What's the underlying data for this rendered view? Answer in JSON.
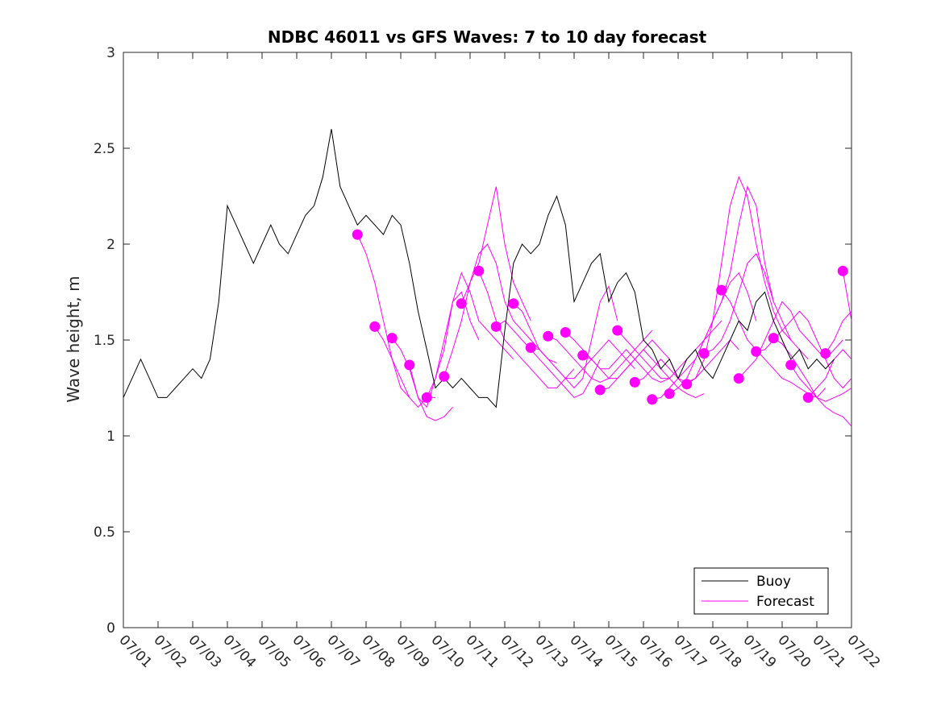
{
  "chart_data": {
    "type": "line",
    "title": "NDBC 46011 vs GFS Waves: 7 to 10 day forecast",
    "xlabel": "",
    "ylabel": "Wave height, m",
    "xlim": [
      0,
      21
    ],
    "ylim": [
      0,
      3
    ],
    "x_ticks": [
      "07/01",
      "07/02",
      "07/03",
      "07/04",
      "07/05",
      "07/06",
      "07/07",
      "07/08",
      "07/09",
      "07/10",
      "07/11",
      "07/12",
      "07/13",
      "07/14",
      "07/15",
      "07/16",
      "07/17",
      "07/18",
      "07/19",
      "07/20",
      "07/21",
      "07/22"
    ],
    "y_ticks": [
      0,
      0.5,
      1,
      1.5,
      2,
      2.5,
      3
    ],
    "y_tick_labels": [
      "0",
      "0.5",
      "1",
      "1.5",
      "2",
      "2.5",
      "3"
    ],
    "legend": {
      "placement": "bottom-right",
      "entries": [
        "Buoy",
        "Forecast"
      ]
    },
    "colors": {
      "buoy": "#000000",
      "forecast": "#ff00ff"
    },
    "series": [
      {
        "name": "Buoy",
        "x": [
          0,
          0.25,
          0.5,
          0.75,
          1,
          1.25,
          1.5,
          1.75,
          2,
          2.25,
          2.5,
          2.75,
          3,
          3.25,
          3.5,
          3.75,
          4,
          4.25,
          4.5,
          4.75,
          5,
          5.25,
          5.5,
          5.75,
          6,
          6.25,
          6.5,
          6.75,
          7,
          7.25,
          7.5,
          7.75,
          8,
          8.25,
          8.5,
          8.75,
          9,
          9.25,
          9.5,
          9.75,
          10,
          10.25,
          10.5,
          10.75,
          11,
          11.25,
          11.5,
          11.75,
          12,
          12.25,
          12.5,
          12.75,
          13,
          13.25,
          13.5,
          13.75,
          14,
          14.25,
          14.5,
          14.75,
          15,
          15.25,
          15.5,
          15.75,
          16,
          16.25,
          16.5,
          16.75,
          17,
          17.25,
          17.5,
          17.75,
          18,
          18.25,
          18.5,
          18.75,
          19,
          19.25,
          19.5,
          19.75,
          20,
          20.25,
          20.5
        ],
        "values": [
          1.2,
          1.3,
          1.4,
          1.3,
          1.2,
          1.2,
          1.25,
          1.3,
          1.35,
          1.3,
          1.4,
          1.7,
          2.2,
          2.1,
          2.0,
          1.9,
          2.0,
          2.1,
          2.0,
          1.95,
          2.05,
          2.15,
          2.2,
          2.35,
          2.6,
          2.3,
          2.2,
          2.1,
          2.15,
          2.1,
          2.05,
          2.15,
          2.1,
          1.9,
          1.65,
          1.45,
          1.25,
          1.3,
          1.25,
          1.3,
          1.25,
          1.2,
          1.2,
          1.15,
          1.55,
          1.9,
          2.0,
          1.95,
          2.0,
          2.15,
          2.25,
          2.1,
          1.7,
          1.8,
          1.9,
          1.95,
          1.7,
          1.8,
          1.85,
          1.75,
          1.5,
          1.45,
          1.35,
          1.4,
          1.3,
          1.4,
          1.45,
          1.35,
          1.3,
          1.4,
          1.5,
          1.6,
          1.55,
          1.7,
          1.75,
          1.6,
          1.5,
          1.4,
          1.45,
          1.35,
          1.4,
          1.35,
          1.4
        ]
      },
      {
        "name": "Forecast",
        "runs": [
          {
            "x": [
              6.75,
              7.0,
              7.25,
              7.5,
              7.75,
              8.0,
              8.25
            ],
            "values": [
              2.05,
              1.95,
              1.8,
              1.6,
              1.4,
              1.25,
              1.2
            ]
          },
          {
            "x": [
              7.25,
              7.5,
              7.75,
              8.0,
              8.25,
              8.5,
              8.75,
              9.0
            ],
            "values": [
              1.57,
              1.5,
              1.4,
              1.3,
              1.2,
              1.15,
              1.2,
              1.2
            ]
          },
          {
            "x": [
              7.75,
              8.0,
              8.25,
              8.5,
              8.75,
              9.0,
              9.25,
              9.5
            ],
            "values": [
              1.51,
              1.45,
              1.35,
              1.2,
              1.1,
              1.08,
              1.1,
              1.15
            ]
          },
          {
            "x": [
              8.25,
              8.5,
              8.75,
              9.0,
              9.25,
              9.5,
              9.75,
              10.0,
              10.25
            ],
            "values": [
              1.37,
              1.2,
              1.15,
              1.3,
              1.5,
              1.7,
              1.75,
              1.6,
              1.5
            ]
          },
          {
            "x": [
              8.75,
              9.0,
              9.25,
              9.5,
              9.75,
              10.0,
              10.25,
              10.5,
              10.75,
              11.0,
              11.25
            ],
            "values": [
              1.2,
              1.3,
              1.45,
              1.7,
              1.85,
              1.75,
              1.6,
              1.55,
              1.5,
              1.45,
              1.4
            ]
          },
          {
            "x": [
              9.25,
              9.5,
              9.75,
              10.0,
              10.25,
              10.5,
              10.75,
              11.0,
              11.25,
              11.5,
              11.75
            ],
            "values": [
              1.31,
              1.45,
              1.6,
              1.8,
              1.9,
              2.1,
              2.3,
              2.0,
              1.8,
              1.7,
              1.6
            ]
          },
          {
            "x": [
              9.75,
              10.0,
              10.25,
              10.5,
              10.75,
              11.0,
              11.25,
              11.5,
              11.75,
              12.0,
              12.25,
              12.5
            ],
            "values": [
              1.69,
              1.8,
              1.95,
              2.0,
              1.9,
              1.7,
              1.6,
              1.55,
              1.5,
              1.45,
              1.4,
              1.38
            ]
          },
          {
            "x": [
              10.25,
              10.5,
              10.75,
              11.0,
              11.25,
              11.5,
              11.75,
              12.0,
              12.25,
              12.5,
              12.75,
              13.0
            ],
            "values": [
              1.86,
              1.75,
              1.6,
              1.5,
              1.45,
              1.4,
              1.35,
              1.3,
              1.25,
              1.25,
              1.3,
              1.35
            ]
          },
          {
            "x": [
              10.75,
              11.0,
              11.25,
              11.5,
              11.75,
              12.0,
              12.25,
              12.5,
              12.75,
              13.0,
              13.25,
              13.5,
              13.75
            ],
            "values": [
              1.57,
              1.6,
              1.55,
              1.5,
              1.45,
              1.4,
              1.35,
              1.3,
              1.25,
              1.2,
              1.22,
              1.3,
              1.4
            ]
          },
          {
            "x": [
              11.25,
              11.5,
              11.75,
              12.0,
              12.25,
              12.5,
              12.75,
              13.0,
              13.25,
              13.5,
              13.75,
              14.0,
              14.25
            ],
            "values": [
              1.69,
              1.65,
              1.55,
              1.45,
              1.4,
              1.35,
              1.3,
              1.25,
              1.3,
              1.5,
              1.7,
              1.78,
              1.6
            ]
          },
          {
            "x": [
              11.75,
              12.0,
              12.25,
              12.5,
              12.75,
              13.0,
              13.25,
              13.5,
              13.75,
              14.0,
              14.25,
              14.5,
              14.75
            ],
            "values": [
              1.46,
              1.45,
              1.4,
              1.35,
              1.3,
              1.3,
              1.35,
              1.4,
              1.45,
              1.5,
              1.45,
              1.4,
              1.35
            ]
          },
          {
            "x": [
              12.25,
              12.5,
              12.75,
              13.0,
              13.25,
              13.5,
              13.75,
              14.0,
              14.25,
              14.5,
              14.75,
              15.0,
              15.25
            ],
            "values": [
              1.52,
              1.5,
              1.45,
              1.4,
              1.35,
              1.3,
              1.28,
              1.3,
              1.35,
              1.4,
              1.45,
              1.5,
              1.55
            ]
          },
          {
            "x": [
              12.75,
              13.0,
              13.25,
              13.5,
              13.75,
              14.0,
              14.25,
              14.5,
              14.75,
              15.0,
              15.25,
              15.5,
              15.75
            ],
            "values": [
              1.54,
              1.5,
              1.45,
              1.4,
              1.35,
              1.35,
              1.4,
              1.45,
              1.4,
              1.35,
              1.3,
              1.28,
              1.3
            ]
          },
          {
            "x": [
              13.25,
              13.5,
              13.75,
              14.0,
              14.25,
              14.5,
              14.75,
              15.0,
              15.25,
              15.5,
              15.75,
              16.0,
              16.25
            ],
            "values": [
              1.42,
              1.4,
              1.35,
              1.3,
              1.3,
              1.35,
              1.4,
              1.45,
              1.5,
              1.45,
              1.4,
              1.3,
              1.25
            ]
          },
          {
            "x": [
              13.75,
              14.0,
              14.25,
              14.5,
              14.75,
              15.0,
              15.25,
              15.5,
              15.75,
              16.0,
              16.25,
              16.5,
              16.75
            ],
            "values": [
              1.24,
              1.25,
              1.3,
              1.35,
              1.4,
              1.45,
              1.4,
              1.35,
              1.3,
              1.25,
              1.22,
              1.2,
              1.22
            ]
          },
          {
            "x": [
              14.25,
              14.5,
              14.75,
              15.0,
              15.25,
              15.5,
              15.75,
              16.0,
              16.25,
              16.5,
              16.75,
              17.0,
              17.25
            ],
            "values": [
              1.55,
              1.5,
              1.45,
              1.4,
              1.35,
              1.3,
              1.3,
              1.35,
              1.4,
              1.45,
              1.5,
              1.55,
              1.6
            ]
          },
          {
            "x": [
              14.75,
              15.0,
              15.25,
              15.5,
              15.75,
              16.0,
              16.25,
              16.5,
              16.75,
              17.0,
              17.25,
              17.5,
              17.75
            ],
            "values": [
              1.28,
              1.3,
              1.35,
              1.4,
              1.35,
              1.3,
              1.28,
              1.3,
              1.35,
              1.4,
              1.45,
              1.5,
              1.45
            ]
          },
          {
            "x": [
              15.25,
              15.5,
              15.75,
              16.0,
              16.25,
              16.5,
              16.75,
              17.0,
              17.25,
              17.5,
              17.75,
              18.0,
              18.25
            ],
            "values": [
              1.19,
              1.2,
              1.25,
              1.3,
              1.35,
              1.4,
              1.5,
              1.6,
              1.7,
              1.8,
              1.85,
              1.75,
              1.6
            ]
          },
          {
            "x": [
              15.75,
              16.0,
              16.25,
              16.5,
              16.75,
              17.0,
              17.25,
              17.5,
              17.75,
              18.0,
              18.25,
              18.5,
              18.75
            ],
            "values": [
              1.22,
              1.25,
              1.3,
              1.4,
              1.5,
              1.6,
              1.7,
              1.85,
              2.1,
              2.3,
              2.2,
              1.9,
              1.7
            ]
          },
          {
            "x": [
              16.25,
              16.5,
              16.75,
              17.0,
              17.25,
              17.5,
              17.75,
              18.0,
              18.25,
              18.5,
              18.75,
              19.0,
              19.25
            ],
            "values": [
              1.27,
              1.3,
              1.4,
              1.6,
              1.9,
              2.2,
              2.35,
              2.25,
              2.0,
              1.8,
              1.65,
              1.55,
              1.5
            ]
          },
          {
            "x": [
              16.75,
              17.0,
              17.25,
              17.5,
              17.75,
              18.0,
              18.25,
              18.5,
              18.75,
              19.0,
              19.25,
              19.5,
              19.75
            ],
            "values": [
              1.43,
              1.45,
              1.5,
              1.6,
              1.75,
              1.9,
              1.95,
              1.85,
              1.7,
              1.6,
              1.5,
              1.45,
              1.4
            ]
          },
          {
            "x": [
              17.25,
              17.5,
              17.75,
              18.0,
              18.25,
              18.5,
              18.75,
              19.0,
              19.25,
              19.5,
              19.75,
              20.0,
              20.25
            ],
            "values": [
              1.76,
              1.7,
              1.6,
              1.5,
              1.45,
              1.4,
              1.35,
              1.3,
              1.28,
              1.25,
              1.22,
              1.2,
              1.25
            ]
          },
          {
            "x": [
              17.75,
              18.0,
              18.25,
              18.5,
              18.75,
              19.0,
              19.25,
              19.5,
              19.75,
              20.0,
              20.25,
              20.5,
              20.75
            ],
            "values": [
              1.3,
              1.35,
              1.4,
              1.5,
              1.6,
              1.7,
              1.65,
              1.55,
              1.5,
              1.45,
              1.4,
              1.45,
              1.5
            ]
          },
          {
            "x": [
              18.25,
              18.5,
              18.75,
              19.0,
              19.25,
              19.5,
              19.75,
              20.0,
              20.25,
              20.5,
              20.75,
              21.0
            ],
            "values": [
              1.44,
              1.45,
              1.5,
              1.55,
              1.6,
              1.65,
              1.6,
              1.5,
              1.4,
              1.3,
              1.25,
              1.3
            ]
          },
          {
            "x": [
              18.75,
              19.0,
              19.25,
              19.5,
              19.75,
              20.0,
              20.25,
              20.5,
              20.75,
              21.0
            ],
            "values": [
              1.51,
              1.48,
              1.42,
              1.35,
              1.28,
              1.2,
              1.15,
              1.12,
              1.1,
              1.05
            ]
          },
          {
            "x": [
              19.25,
              19.5,
              19.75,
              20.0,
              20.25,
              20.5,
              20.75,
              21.0
            ],
            "values": [
              1.37,
              1.3,
              1.25,
              1.2,
              1.18,
              1.2,
              1.22,
              1.25
            ]
          },
          {
            "x": [
              19.75,
              20.0,
              20.25,
              20.5,
              20.75,
              21.0
            ],
            "values": [
              1.2,
              1.25,
              1.3,
              1.4,
              1.45,
              1.4
            ]
          },
          {
            "x": [
              20.25,
              20.5,
              20.75,
              21.0
            ],
            "values": [
              1.43,
              1.5,
              1.6,
              1.65
            ]
          },
          {
            "x": [
              20.75,
              21.0
            ],
            "values": [
              1.86,
              1.6
            ]
          }
        ]
      }
    ]
  }
}
